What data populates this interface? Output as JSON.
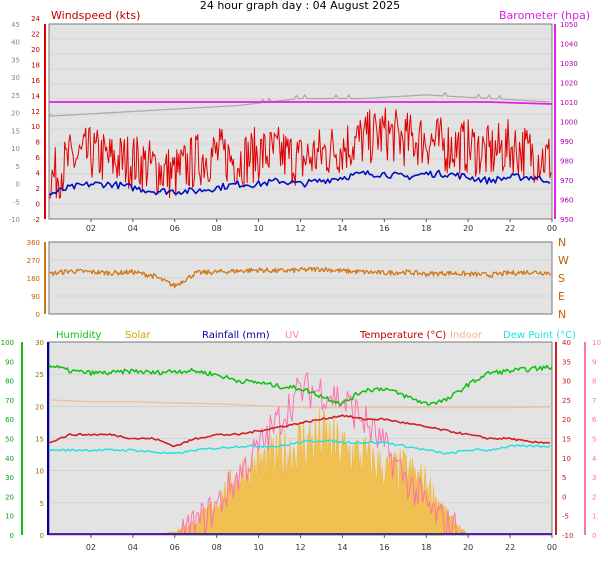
{
  "title": "24 hour graph day : 04 August 2025",
  "colors": {
    "background": "#ffffff",
    "plot_bg": "#e3e3e3",
    "grid": "#c8c8c8",
    "windspeed": "#e00000",
    "wind_avg": "#0010c0",
    "barometer": "#e020e0",
    "gray_series": "#a8a8a8",
    "direction": "#d07818",
    "humidity": "#10c010",
    "solar": "#f0c050",
    "rainfall": "#0000a0",
    "uv": "#ff70b0",
    "temperature": "#d02020",
    "indoor": "#f0c0a0",
    "dewpoint": "#20e0e0"
  },
  "chart_data": [
    {
      "type": "line",
      "panel": "wind-barometer",
      "x_ticks": [
        "02",
        "04",
        "06",
        "08",
        "10",
        "12",
        "14",
        "16",
        "18",
        "20",
        "22",
        "00"
      ],
      "left_axis_outer": {
        "ticks": [
          "-10",
          "-5",
          "0",
          "5",
          "10",
          "15",
          "20",
          "25",
          "30",
          "35",
          "40",
          "45"
        ]
      },
      "left_axis_inner": {
        "label": "Windspeed (kts)",
        "ticks": [
          "-2",
          "0",
          "2",
          "4",
          "6",
          "8",
          "10",
          "12",
          "14",
          "16",
          "18",
          "20",
          "22",
          "24"
        ]
      },
      "right_axis": {
        "label": "Barometer (hpa)",
        "ticks": [
          "950",
          "960",
          "970",
          "980",
          "990",
          "1000",
          "1010",
          "1020",
          "1030",
          "1040",
          "1050"
        ]
      },
      "series": [
        {
          "name": "Windspeed (kts)",
          "description_key": "gust",
          "x": [
            0,
            1,
            2,
            3,
            4,
            5,
            6,
            7,
            8,
            9,
            10,
            11,
            12,
            13,
            14,
            15,
            16,
            17,
            18,
            19,
            20,
            21,
            22,
            23,
            24
          ],
          "y": [
            2,
            5,
            6,
            5,
            5,
            4,
            3,
            5,
            6,
            5,
            6,
            6,
            5,
            6,
            7,
            8,
            9,
            8,
            8,
            7,
            7,
            6,
            7,
            6,
            5
          ]
        },
        {
          "name": "avg",
          "x": [
            0,
            1,
            2,
            3,
            4,
            5,
            6,
            7,
            8,
            9,
            10,
            11,
            12,
            13,
            14,
            15,
            16,
            17,
            18,
            19,
            20,
            21,
            22,
            23,
            24
          ],
          "y": [
            0.5,
            1.5,
            2,
            2,
            1.5,
            1,
            1,
            1,
            1.5,
            2,
            2,
            2.5,
            2,
            2.5,
            3,
            3.5,
            3.5,
            3,
            3.5,
            3.5,
            3,
            2.5,
            3,
            3,
            2.5
          ]
        },
        {
          "name": "Barometer (hpa)",
          "x": [
            0,
            3,
            6,
            9,
            12,
            15,
            18,
            21,
            24
          ],
          "y": [
            1010,
            1010,
            1010,
            1010,
            1010,
            1010,
            1010,
            1010,
            1009
          ]
        },
        {
          "name": "gray",
          "x": [
            0,
            3,
            6,
            9,
            12,
            15,
            18,
            21,
            24
          ],
          "y": [
            19,
            20,
            21,
            22,
            24,
            24,
            25,
            24,
            23
          ]
        }
      ]
    },
    {
      "type": "line",
      "panel": "wind-direction",
      "x_ticks": [],
      "left_axis": {
        "ticks": [
          "0",
          "90",
          "180",
          "270",
          "360"
        ]
      },
      "right_axis": {
        "ticks": [
          "N",
          "E",
          "S",
          "W",
          "N"
        ]
      },
      "series": [
        {
          "name": "direction",
          "x": [
            0,
            1,
            2,
            3,
            4,
            5,
            6,
            7,
            8,
            9,
            10,
            11,
            12,
            13,
            14,
            15,
            16,
            17,
            18,
            19,
            20,
            21,
            22,
            23,
            24
          ],
          "y": [
            200,
            215,
            210,
            205,
            210,
            190,
            140,
            205,
            210,
            215,
            220,
            215,
            220,
            225,
            215,
            210,
            205,
            210,
            200,
            205,
            200,
            195,
            205,
            210,
            205
          ]
        }
      ]
    },
    {
      "type": "line",
      "panel": "temperature-humidity",
      "x_ticks": [
        "02",
        "04",
        "06",
        "08",
        "10",
        "12",
        "14",
        "16",
        "18",
        "20",
        "22",
        "00"
      ],
      "axis_humidity": {
        "ticks": [
          "0",
          "10",
          "20",
          "30",
          "40",
          "50",
          "60",
          "70",
          "80",
          "90",
          "100"
        ]
      },
      "axis_solar_rain": {
        "ticks": [
          "0",
          "5",
          "10",
          "15",
          "20",
          "25",
          "30"
        ]
      },
      "axis_temperature": {
        "ticks": [
          "-10",
          "-5",
          "0",
          "5",
          "10",
          "15",
          "20",
          "25",
          "30",
          "35",
          "40"
        ]
      },
      "axis_uv": {
        "ticks": [
          "0",
          "1",
          "2",
          "3",
          "4",
          "5",
          "6",
          "7",
          "8",
          "9",
          "10"
        ]
      },
      "legend": [
        "Humidity",
        "Solar",
        "Rainfall (mm)",
        "UV",
        "Temperature (°C)",
        "Indoor",
        "Dew Point (°C)"
      ],
      "series": [
        {
          "name": "Humidity",
          "x": [
            0,
            1,
            2,
            3,
            4,
            5,
            6,
            7,
            8,
            9,
            10,
            11,
            12,
            13,
            14,
            15,
            16,
            17,
            18,
            19,
            20,
            21,
            22,
            23,
            24
          ],
          "y": [
            88,
            85,
            84,
            84,
            85,
            84,
            85,
            85,
            83,
            80,
            79,
            77,
            76,
            72,
            68,
            75,
            76,
            72,
            68,
            70,
            78,
            84,
            85,
            86,
            87
          ]
        },
        {
          "name": "Temperature (°C)",
          "x": [
            0,
            1,
            2,
            3,
            4,
            5,
            6,
            7,
            8,
            9,
            10,
            11,
            12,
            13,
            14,
            15,
            16,
            17,
            18,
            19,
            20,
            21,
            22,
            23,
            24
          ],
          "y": [
            14,
            16,
            16,
            16,
            15,
            15,
            13,
            15,
            16,
            16,
            17,
            18,
            19,
            20,
            21,
            20,
            20,
            19,
            18,
            17,
            16,
            15,
            15,
            14,
            14
          ]
        },
        {
          "name": "Indoor",
          "x": [
            0,
            2,
            4,
            6,
            8,
            10,
            12,
            14,
            16,
            18,
            20,
            22,
            24
          ],
          "y": [
            25,
            24.5,
            24.5,
            24.2,
            24,
            23.5,
            23,
            23,
            23,
            23,
            23,
            23,
            23.2
          ]
        },
        {
          "name": "Dew Point (°C)",
          "x": [
            0,
            1,
            2,
            3,
            4,
            5,
            6,
            7,
            8,
            9,
            10,
            11,
            12,
            13,
            14,
            15,
            16,
            17,
            18,
            19,
            20,
            21,
            22,
            23,
            24
          ],
          "y": [
            12,
            12,
            12,
            12,
            12,
            11.5,
            11,
            12,
            12.5,
            13,
            13,
            13,
            14,
            14.5,
            14,
            14,
            14,
            13,
            12,
            11,
            12,
            12,
            13,
            13,
            13
          ]
        },
        {
          "name": "Solar",
          "x": [
            0,
            5,
            6,
            7,
            8,
            9,
            10,
            11,
            12,
            13,
            14,
            15,
            16,
            17,
            18,
            19,
            20,
            24
          ],
          "y": [
            0,
            0,
            0.5,
            2,
            5,
            9,
            11,
            12,
            14,
            15,
            13,
            12,
            10,
            10,
            8,
            3,
            0,
            0
          ]
        },
        {
          "name": "UV",
          "x": [
            0,
            5,
            6,
            7,
            8,
            9,
            10,
            11,
            12,
            13,
            14,
            15,
            16,
            17,
            18,
            19,
            20,
            24
          ],
          "y": [
            0,
            0,
            0,
            0.5,
            1.5,
            3,
            4.5,
            6,
            7.5,
            7.5,
            7,
            6,
            4.5,
            3,
            1.5,
            0.5,
            0,
            0
          ]
        },
        {
          "name": "Rainfall (mm)",
          "x": [
            0,
            24
          ],
          "y": [
            0,
            0
          ]
        }
      ]
    }
  ]
}
